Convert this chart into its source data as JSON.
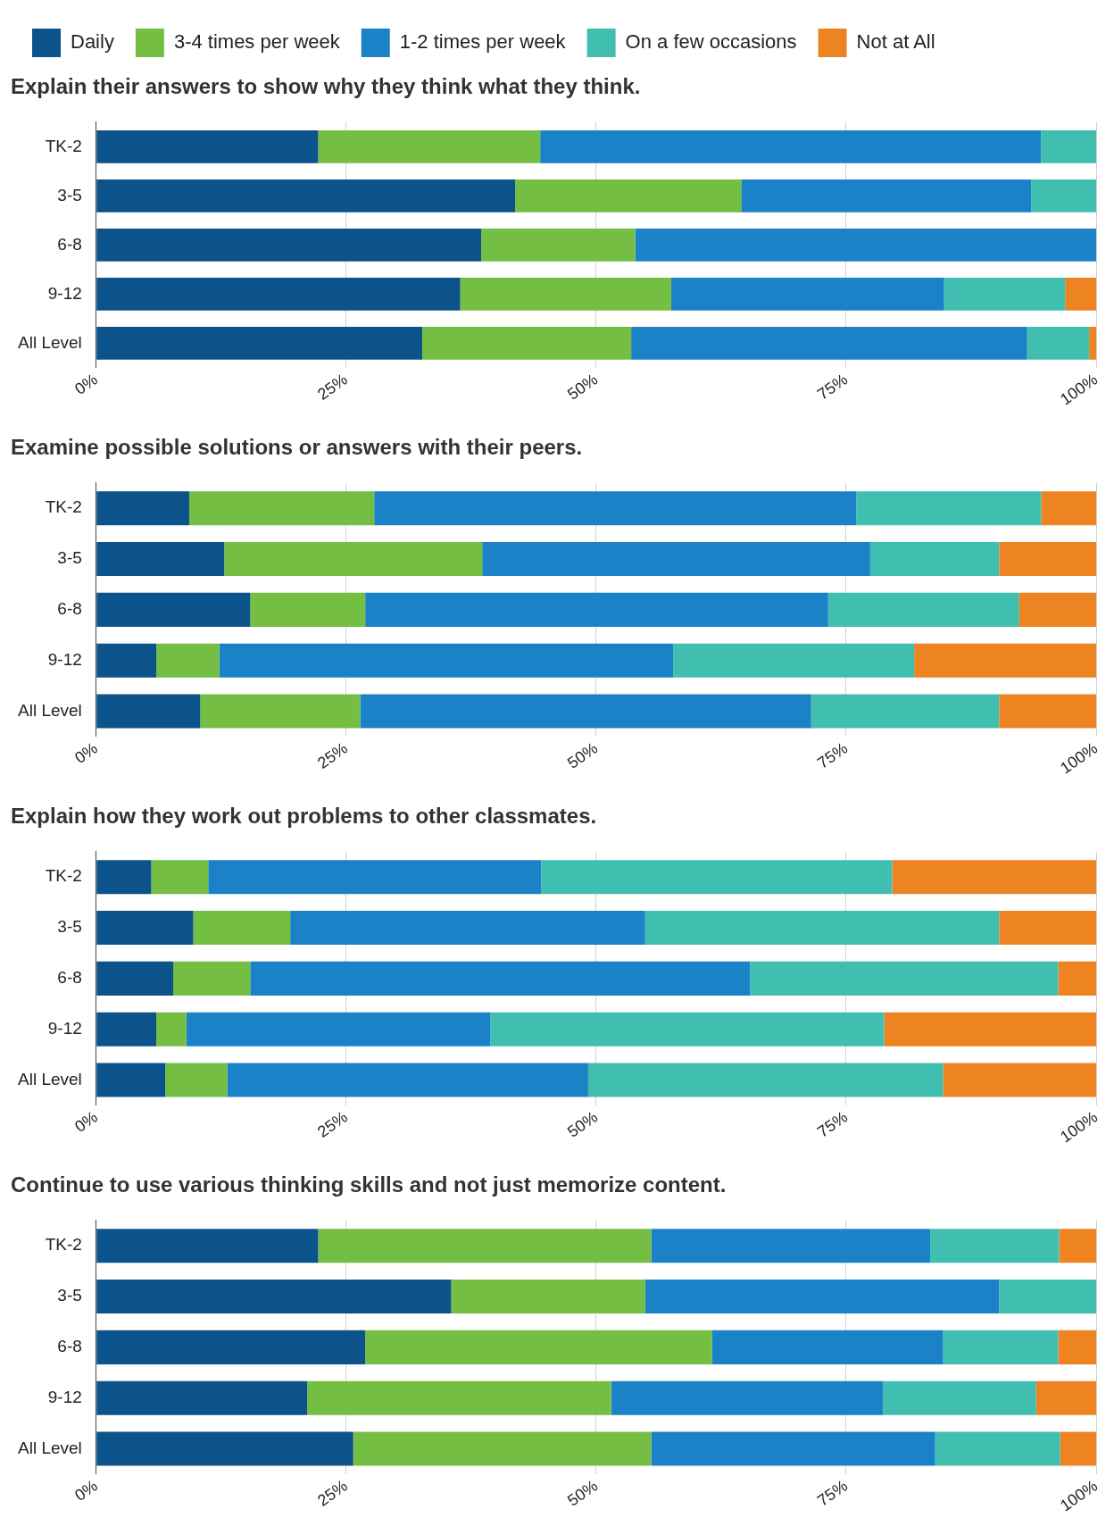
{
  "chart_data": [
    {
      "type": "bar",
      "orientation": "horizontal",
      "stacked": true,
      "title": "Explain their answers to show why they think what they think.",
      "categories": [
        "TK-2",
        "3-5",
        "6-8",
        "9-12",
        "All Level"
      ],
      "xlim": [
        0,
        100
      ],
      "xticks": [
        {
          "value": 0,
          "label": "0%"
        },
        {
          "value": 25,
          "label": "25%"
        },
        {
          "value": 50,
          "label": "50%"
        },
        {
          "value": 75,
          "label": "75%"
        },
        {
          "value": 100,
          "label": "100%"
        }
      ],
      "grid": "x",
      "legend": "top",
      "series": [
        {
          "name": "Daily",
          "color": "#0b538a",
          "values": [
            22.2,
            41.9,
            38.5,
            36.4,
            32.6
          ]
        },
        {
          "name": "3-4 times per week",
          "color": "#74be44",
          "values": [
            22.2,
            22.6,
            15.4,
            21.1,
            20.9
          ]
        },
        {
          "name": "1-2 times per week",
          "color": "#1b82c7",
          "values": [
            50.1,
            29.0,
            46.1,
            27.3,
            39.6
          ]
        },
        {
          "name": "On a few occasions",
          "color": "#40bfb0",
          "values": [
            5.5,
            6.5,
            0,
            12.1,
            6.2
          ]
        },
        {
          "name": "Not at All",
          "color": "#ee8421",
          "values": [
            0,
            0,
            0,
            3.1,
            0.7
          ]
        }
      ]
    },
    {
      "type": "bar",
      "orientation": "horizontal",
      "stacked": true,
      "title": "Examine possible solutions or answers with their peers.",
      "categories": [
        "TK-2",
        "3-5",
        "6-8",
        "9-12",
        "All Level"
      ],
      "xlim": [
        0,
        100
      ],
      "xticks": [
        {
          "value": 0,
          "label": "0%"
        },
        {
          "value": 25,
          "label": "25%"
        },
        {
          "value": 50,
          "label": "50%"
        },
        {
          "value": 75,
          "label": "75%"
        },
        {
          "value": 100,
          "label": "100%"
        }
      ],
      "grid": "x",
      "series": [
        {
          "color": "#0b538a",
          "values": [
            9.3,
            12.8,
            15.4,
            6.0,
            10.4
          ]
        },
        {
          "color": "#74be44",
          "values": [
            18.5,
            25.8,
            11.5,
            6.3,
            16.0
          ]
        },
        {
          "color": "#1b82c7",
          "values": [
            48.2,
            38.8,
            46.3,
            45.4,
            45.1
          ]
        },
        {
          "color": "#40bfb0",
          "values": [
            18.5,
            12.9,
            19.1,
            24.1,
            18.8
          ]
        },
        {
          "color": "#ee8421",
          "values": [
            5.5,
            9.7,
            7.7,
            18.2,
            9.7
          ]
        }
      ]
    },
    {
      "type": "bar",
      "orientation": "horizontal",
      "stacked": true,
      "title": "Explain how they work out problems to other classmates.",
      "categories": [
        "TK-2",
        "3-5",
        "6-8",
        "9-12",
        "All Level"
      ],
      "xlim": [
        0,
        100
      ],
      "xticks": [
        {
          "value": 0,
          "label": "0%"
        },
        {
          "value": 25,
          "label": "25%"
        },
        {
          "value": 50,
          "label": "50%"
        },
        {
          "value": 75,
          "label": "75%"
        },
        {
          "value": 100,
          "label": "100%"
        }
      ],
      "grid": "x",
      "series": [
        {
          "color": "#0b538a",
          "values": [
            5.5,
            9.7,
            7.7,
            6.0,
            6.9
          ]
        },
        {
          "color": "#74be44",
          "values": [
            5.7,
            9.7,
            7.7,
            3.0,
            6.2
          ]
        },
        {
          "color": "#1b82c7",
          "values": [
            33.3,
            35.5,
            50.0,
            30.4,
            36.1
          ]
        },
        {
          "color": "#40bfb0",
          "values": [
            35.1,
            35.4,
            30.8,
            39.4,
            35.5
          ]
        },
        {
          "color": "#ee8421",
          "values": [
            20.4,
            9.7,
            3.8,
            21.2,
            15.3
          ]
        }
      ]
    },
    {
      "type": "bar",
      "orientation": "horizontal",
      "stacked": true,
      "title": "Continue to use various thinking skills and not just memorize content.",
      "categories": [
        "TK-2",
        "3-5",
        "6-8",
        "9-12",
        "All Level"
      ],
      "xlim": [
        0,
        100
      ],
      "xticks": [
        {
          "value": 0,
          "label": "0%"
        },
        {
          "value": 25,
          "label": "25%"
        },
        {
          "value": 50,
          "label": "50%"
        },
        {
          "value": 75,
          "label": "75%"
        },
        {
          "value": 100,
          "label": "100%"
        }
      ],
      "grid": "x",
      "series": [
        {
          "color": "#0b538a",
          "values": [
            22.2,
            35.5,
            26.9,
            21.1,
            25.7
          ]
        },
        {
          "color": "#74be44",
          "values": [
            33.3,
            19.4,
            34.7,
            30.4,
            29.8
          ]
        },
        {
          "color": "#1b82c7",
          "values": [
            27.9,
            35.4,
            23.1,
            27.2,
            28.4
          ]
        },
        {
          "color": "#40bfb0",
          "values": [
            12.9,
            9.7,
            11.5,
            15.3,
            12.5
          ]
        },
        {
          "color": "#ee8421",
          "values": [
            3.7,
            0,
            3.8,
            6.0,
            3.6
          ]
        }
      ]
    }
  ]
}
